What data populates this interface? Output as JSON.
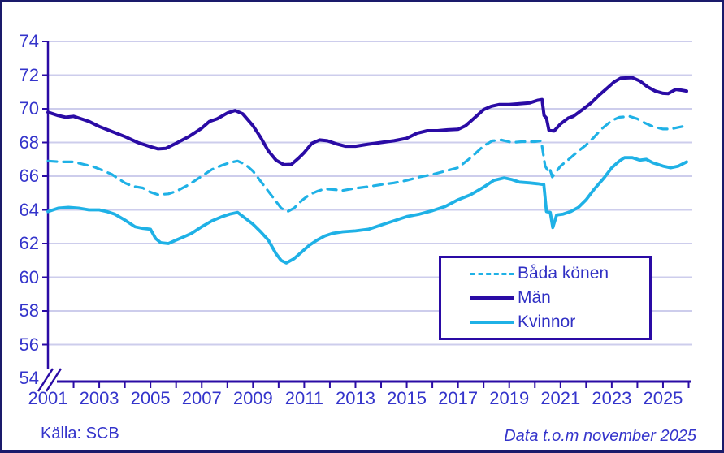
{
  "source": {
    "text": "Källa: SCB"
  },
  "note": {
    "text": "Data t.o.m november 2025"
  },
  "legend": {
    "position": "inside-right",
    "items": [
      {
        "label": "Båda könen",
        "style": "dashed",
        "color": "#1fb1e6"
      },
      {
        "label": "Män",
        "style": "solid",
        "color": "#2a0ba5"
      },
      {
        "label": "Kvinnor",
        "style": "solid",
        "color": "#1fb1e6"
      }
    ]
  },
  "colors": {
    "navy": "#2a0ba5",
    "cyan": "#1fb1e6",
    "grid": "#cdcdec",
    "text": "#3434cb",
    "frame": "#1a1a6b",
    "background": "#ffffff"
  },
  "chart_data": {
    "type": "line",
    "title": "",
    "xlabel": "",
    "ylabel": "",
    "grid": "horizontal",
    "x_axis": {
      "range": [
        2001,
        2026
      ],
      "tick_every_year": true,
      "label_years": [
        "2001",
        "2003",
        "2005",
        "2007",
        "2009",
        "2011",
        "2013",
        "2015",
        "2017",
        "2019",
        "2021",
        "2023",
        "2025"
      ]
    },
    "y_axis": {
      "range": [
        54,
        74
      ],
      "step": 2,
      "axis_break_at_bottom": true,
      "tick_labels": [
        "74",
        "72",
        "70",
        "68",
        "66",
        "64",
        "62",
        "60",
        "58",
        "56",
        "54"
      ]
    },
    "series": [
      {
        "name": "Båda könen",
        "style": "dashed",
        "color": "#1fb1e6",
        "points": [
          [
            2001.0,
            66.9
          ],
          [
            2001.5,
            66.85
          ],
          [
            2002.0,
            66.85
          ],
          [
            2002.4,
            66.7
          ],
          [
            2002.8,
            66.55
          ],
          [
            2003.2,
            66.3
          ],
          [
            2003.5,
            66.1
          ],
          [
            2004.0,
            65.6
          ],
          [
            2004.3,
            65.4
          ],
          [
            2004.7,
            65.3
          ],
          [
            2005.0,
            65.05
          ],
          [
            2005.3,
            64.9
          ],
          [
            2005.7,
            64.95
          ],
          [
            2006.0,
            65.1
          ],
          [
            2006.5,
            65.5
          ],
          [
            2007.0,
            66.0
          ],
          [
            2007.4,
            66.4
          ],
          [
            2007.8,
            66.65
          ],
          [
            2008.1,
            66.8
          ],
          [
            2008.4,
            66.9
          ],
          [
            2008.7,
            66.7
          ],
          [
            2009.0,
            66.3
          ],
          [
            2009.4,
            65.5
          ],
          [
            2009.8,
            64.7
          ],
          [
            2010.1,
            64.1
          ],
          [
            2010.35,
            63.9
          ],
          [
            2010.6,
            64.1
          ],
          [
            2010.9,
            64.55
          ],
          [
            2011.2,
            64.9
          ],
          [
            2011.5,
            65.1
          ],
          [
            2011.8,
            65.25
          ],
          [
            2012.2,
            65.2
          ],
          [
            2012.5,
            65.15
          ],
          [
            2013.0,
            65.28
          ],
          [
            2013.5,
            65.38
          ],
          [
            2014.0,
            65.5
          ],
          [
            2014.5,
            65.6
          ],
          [
            2015.0,
            65.75
          ],
          [
            2015.5,
            65.95
          ],
          [
            2016.0,
            66.1
          ],
          [
            2016.5,
            66.3
          ],
          [
            2017.0,
            66.5
          ],
          [
            2017.5,
            67.1
          ],
          [
            2018.0,
            67.8
          ],
          [
            2018.35,
            68.1
          ],
          [
            2018.7,
            68.15
          ],
          [
            2019.1,
            68.0
          ],
          [
            2019.5,
            68.05
          ],
          [
            2020.0,
            68.05
          ],
          [
            2020.25,
            68.1
          ],
          [
            2020.4,
            66.6
          ],
          [
            2020.5,
            66.35
          ],
          [
            2020.57,
            66.5
          ],
          [
            2020.68,
            65.95
          ],
          [
            2020.85,
            66.3
          ],
          [
            2021.0,
            66.6
          ],
          [
            2021.4,
            67.1
          ],
          [
            2021.7,
            67.5
          ],
          [
            2022.0,
            67.85
          ],
          [
            2022.3,
            68.3
          ],
          [
            2022.6,
            68.8
          ],
          [
            2023.0,
            69.3
          ],
          [
            2023.3,
            69.5
          ],
          [
            2023.7,
            69.55
          ],
          [
            2024.0,
            69.4
          ],
          [
            2024.3,
            69.15
          ],
          [
            2024.6,
            68.95
          ],
          [
            2025.0,
            68.8
          ],
          [
            2025.3,
            68.8
          ],
          [
            2025.6,
            68.9
          ],
          [
            2025.92,
            69.0
          ]
        ]
      },
      {
        "name": "Män",
        "style": "solid",
        "color": "#2a0ba5",
        "points": [
          [
            2001.0,
            69.8
          ],
          [
            2001.4,
            69.6
          ],
          [
            2001.7,
            69.5
          ],
          [
            2002.0,
            69.55
          ],
          [
            2002.3,
            69.4
          ],
          [
            2002.6,
            69.25
          ],
          [
            2003.0,
            68.95
          ],
          [
            2003.5,
            68.65
          ],
          [
            2004.0,
            68.35
          ],
          [
            2004.5,
            68.0
          ],
          [
            2005.0,
            67.75
          ],
          [
            2005.3,
            67.62
          ],
          [
            2005.6,
            67.65
          ],
          [
            2006.0,
            67.95
          ],
          [
            2006.5,
            68.35
          ],
          [
            2007.0,
            68.85
          ],
          [
            2007.3,
            69.25
          ],
          [
            2007.6,
            69.4
          ],
          [
            2008.0,
            69.75
          ],
          [
            2008.3,
            69.9
          ],
          [
            2008.6,
            69.7
          ],
          [
            2009.0,
            69.0
          ],
          [
            2009.3,
            68.3
          ],
          [
            2009.6,
            67.5
          ],
          [
            2009.9,
            66.95
          ],
          [
            2010.2,
            66.68
          ],
          [
            2010.5,
            66.7
          ],
          [
            2010.8,
            67.1
          ],
          [
            2011.0,
            67.4
          ],
          [
            2011.3,
            67.95
          ],
          [
            2011.6,
            68.15
          ],
          [
            2011.9,
            68.1
          ],
          [
            2012.3,
            67.9
          ],
          [
            2012.6,
            67.78
          ],
          [
            2013.0,
            67.78
          ],
          [
            2013.5,
            67.9
          ],
          [
            2014.0,
            68.0
          ],
          [
            2014.5,
            68.1
          ],
          [
            2015.0,
            68.25
          ],
          [
            2015.4,
            68.55
          ],
          [
            2015.8,
            68.7
          ],
          [
            2016.2,
            68.7
          ],
          [
            2016.6,
            68.75
          ],
          [
            2017.0,
            68.78
          ],
          [
            2017.3,
            69.0
          ],
          [
            2017.6,
            69.4
          ],
          [
            2018.0,
            69.95
          ],
          [
            2018.3,
            70.15
          ],
          [
            2018.6,
            70.25
          ],
          [
            2019.0,
            70.25
          ],
          [
            2019.4,
            70.3
          ],
          [
            2019.8,
            70.35
          ],
          [
            2020.1,
            70.5
          ],
          [
            2020.28,
            70.55
          ],
          [
            2020.36,
            69.6
          ],
          [
            2020.45,
            69.45
          ],
          [
            2020.55,
            68.72
          ],
          [
            2020.75,
            68.68
          ],
          [
            2021.0,
            69.1
          ],
          [
            2021.3,
            69.45
          ],
          [
            2021.5,
            69.55
          ],
          [
            2021.9,
            70.0
          ],
          [
            2022.2,
            70.35
          ],
          [
            2022.5,
            70.8
          ],
          [
            2022.8,
            71.2
          ],
          [
            2023.1,
            71.6
          ],
          [
            2023.35,
            71.82
          ],
          [
            2023.8,
            71.85
          ],
          [
            2024.1,
            71.65
          ],
          [
            2024.4,
            71.3
          ],
          [
            2024.7,
            71.05
          ],
          [
            2025.0,
            70.92
          ],
          [
            2025.2,
            70.9
          ],
          [
            2025.5,
            71.15
          ],
          [
            2025.75,
            71.1
          ],
          [
            2025.92,
            71.05
          ]
        ]
      },
      {
        "name": "Kvinnor",
        "style": "solid",
        "color": "#1fb1e6",
        "points": [
          [
            2001.0,
            63.9
          ],
          [
            2001.4,
            64.1
          ],
          [
            2001.8,
            64.15
          ],
          [
            2002.2,
            64.1
          ],
          [
            2002.6,
            64.0
          ],
          [
            2003.0,
            64.0
          ],
          [
            2003.3,
            63.9
          ],
          [
            2003.6,
            63.75
          ],
          [
            2004.0,
            63.4
          ],
          [
            2004.4,
            63.0
          ],
          [
            2004.7,
            62.9
          ],
          [
            2005.0,
            62.85
          ],
          [
            2005.2,
            62.3
          ],
          [
            2005.4,
            62.05
          ],
          [
            2005.7,
            62.0
          ],
          [
            2006.0,
            62.2
          ],
          [
            2006.3,
            62.4
          ],
          [
            2006.6,
            62.6
          ],
          [
            2007.0,
            63.0
          ],
          [
            2007.4,
            63.35
          ],
          [
            2007.8,
            63.6
          ],
          [
            2008.1,
            63.75
          ],
          [
            2008.4,
            63.85
          ],
          [
            2008.7,
            63.5
          ],
          [
            2009.0,
            63.15
          ],
          [
            2009.3,
            62.7
          ],
          [
            2009.6,
            62.2
          ],
          [
            2009.9,
            61.4
          ],
          [
            2010.1,
            61.0
          ],
          [
            2010.3,
            60.85
          ],
          [
            2010.6,
            61.1
          ],
          [
            2010.9,
            61.5
          ],
          [
            2011.2,
            61.9
          ],
          [
            2011.5,
            62.2
          ],
          [
            2011.8,
            62.45
          ],
          [
            2012.1,
            62.6
          ],
          [
            2012.5,
            62.7
          ],
          [
            2013.0,
            62.75
          ],
          [
            2013.5,
            62.85
          ],
          [
            2014.0,
            63.1
          ],
          [
            2014.5,
            63.35
          ],
          [
            2015.0,
            63.6
          ],
          [
            2015.5,
            63.75
          ],
          [
            2016.0,
            63.95
          ],
          [
            2016.5,
            64.2
          ],
          [
            2017.0,
            64.6
          ],
          [
            2017.5,
            64.9
          ],
          [
            2018.0,
            65.35
          ],
          [
            2018.4,
            65.75
          ],
          [
            2018.8,
            65.9
          ],
          [
            2019.1,
            65.8
          ],
          [
            2019.4,
            65.65
          ],
          [
            2019.8,
            65.6
          ],
          [
            2020.1,
            65.55
          ],
          [
            2020.35,
            65.5
          ],
          [
            2020.45,
            63.9
          ],
          [
            2020.6,
            63.85
          ],
          [
            2020.7,
            62.95
          ],
          [
            2020.85,
            63.7
          ],
          [
            2021.1,
            63.75
          ],
          [
            2021.4,
            63.9
          ],
          [
            2021.7,
            64.15
          ],
          [
            2022.0,
            64.6
          ],
          [
            2022.3,
            65.2
          ],
          [
            2022.7,
            65.9
          ],
          [
            2023.0,
            66.5
          ],
          [
            2023.3,
            66.9
          ],
          [
            2023.5,
            67.1
          ],
          [
            2023.8,
            67.1
          ],
          [
            2024.1,
            66.95
          ],
          [
            2024.35,
            67.0
          ],
          [
            2024.6,
            66.8
          ],
          [
            2025.0,
            66.6
          ],
          [
            2025.3,
            66.5
          ],
          [
            2025.6,
            66.6
          ],
          [
            2025.92,
            66.85
          ]
        ]
      }
    ]
  }
}
